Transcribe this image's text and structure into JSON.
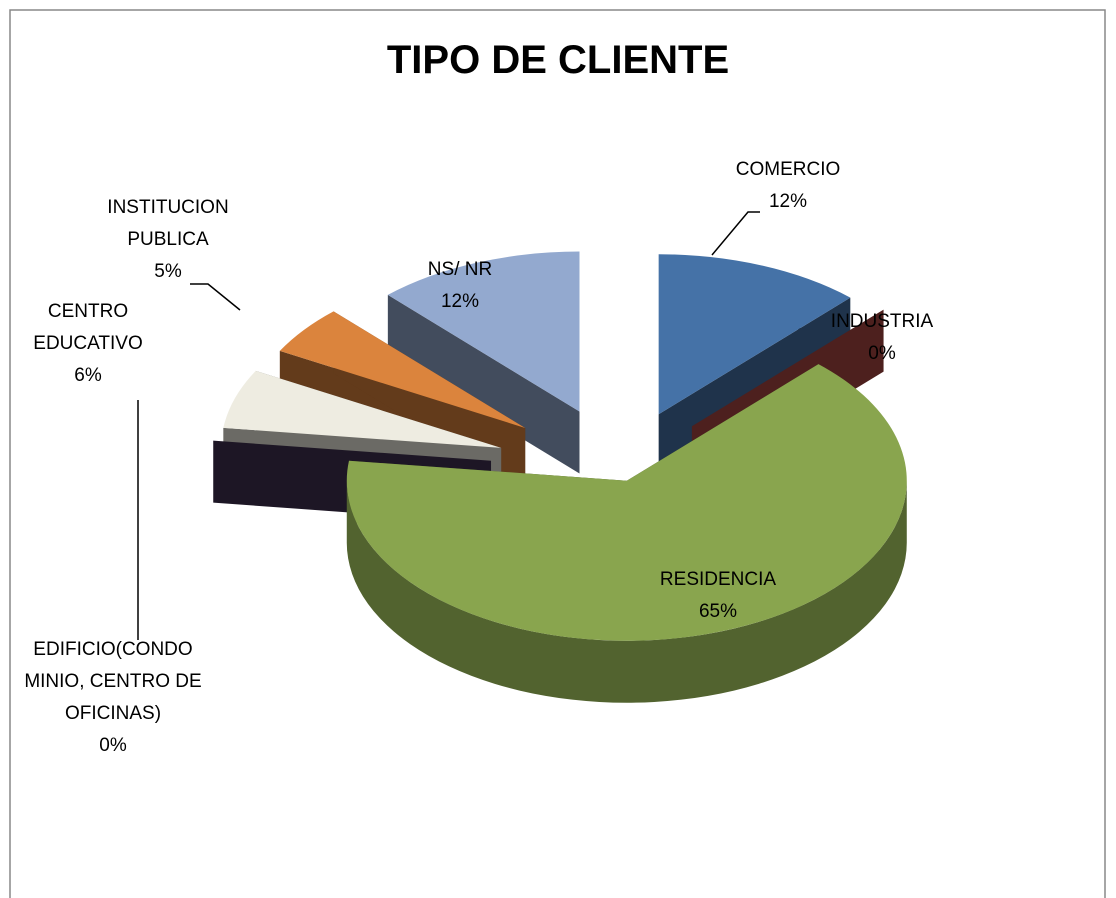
{
  "chart_data": {
    "type": "pie",
    "title": "TIPO DE CLIENTE",
    "categories": [
      "COMERCIO",
      "INDUSTRIA",
      "RESIDENCIA",
      "EDIFICIO(CONDO MINIO, CENTRO DE OFICINAS)",
      "CENTRO EDUCATIVO",
      "INSTITUCION PUBLICA",
      "NS/ NR"
    ],
    "values": [
      12,
      0,
      65,
      0,
      6,
      5,
      12
    ],
    "value_labels": [
      "12%",
      "0%",
      "65%",
      "0%",
      "6%",
      "5%",
      "12%"
    ],
    "colors": [
      "#4572a7",
      "#aa4643",
      "#89a54e",
      "#403152",
      "#eeece1",
      "#db843d",
      "#93a9cf"
    ]
  }
}
